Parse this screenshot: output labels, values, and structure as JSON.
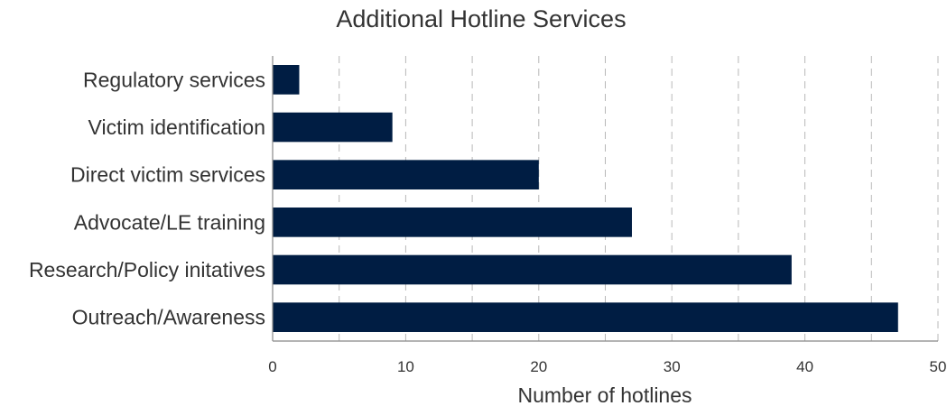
{
  "chart_data": {
    "type": "bar",
    "orientation": "horizontal",
    "title": "Additional Hotline Services",
    "xlabel": "Number of hotlines",
    "ylabel": "",
    "categories": [
      "Regulatory services",
      "Victim identification",
      "Direct victim services",
      "Advocate/LE training",
      "Research/Policy initatives",
      "Outreach/Awareness"
    ],
    "values": [
      2,
      9,
      20,
      27,
      39,
      47
    ],
    "xlim": [
      0,
      50
    ],
    "xticks": [
      0,
      10,
      20,
      30,
      40,
      50
    ],
    "grid": true,
    "grid_style": "dashed vertical",
    "legend": "none",
    "bar_color": "#001d43"
  }
}
